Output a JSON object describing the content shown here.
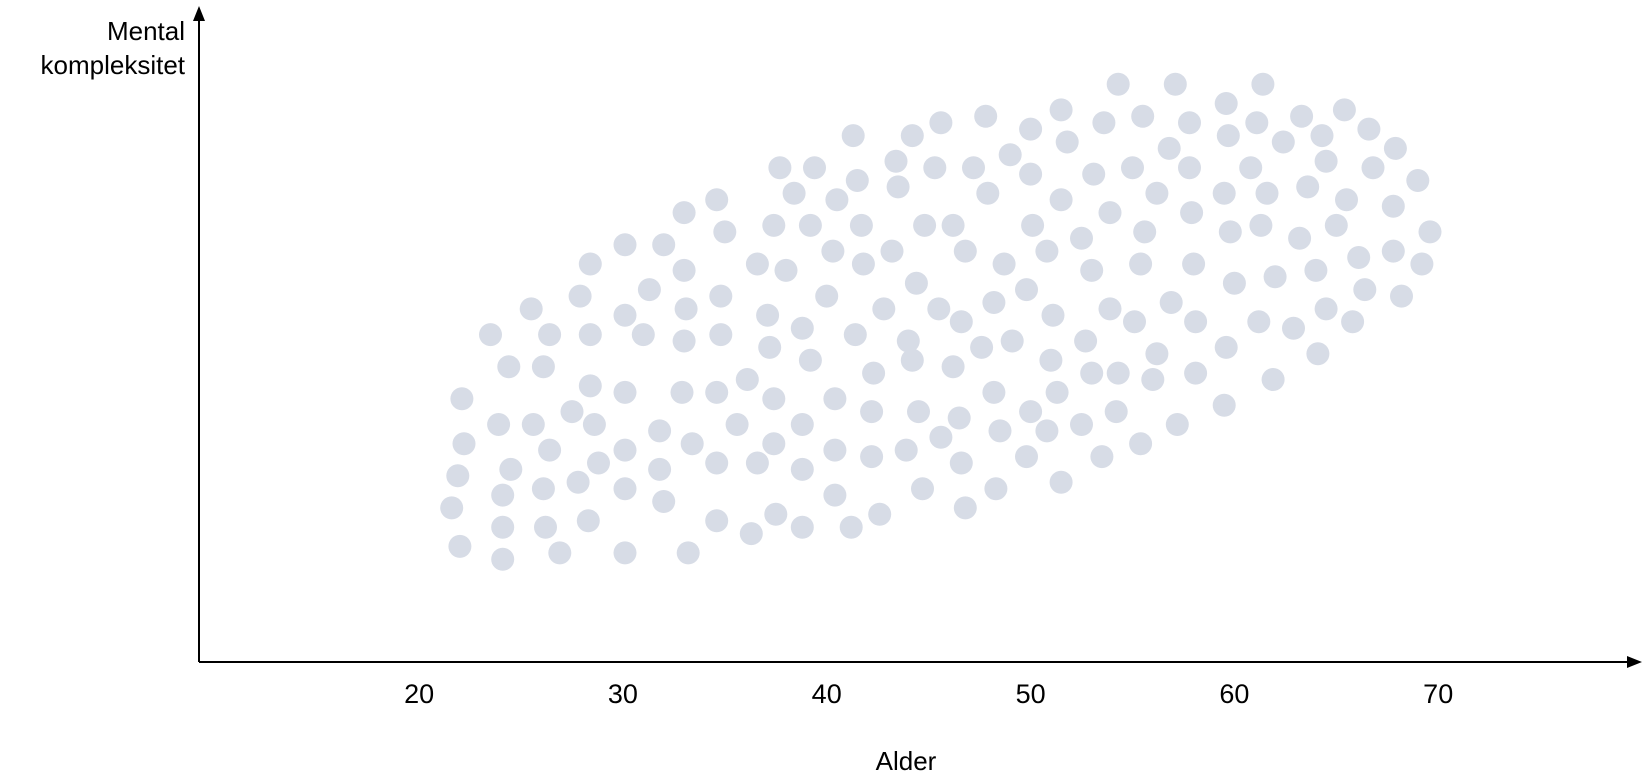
{
  "chart_data": {
    "type": "scatter",
    "title": "",
    "xlabel": "Alder",
    "ylabel": [
      "Mental",
      "kompleksitet"
    ],
    "xlim": [
      9.2,
      80
    ],
    "x_ticks": [
      20,
      30,
      40,
      50,
      60,
      70
    ],
    "ylim": [
      0,
      1
    ],
    "grid": false,
    "legend": "none",
    "point_color": "#d7dce6",
    "axis_color": "#000000",
    "points": [
      [
        21.6,
        0.24
      ],
      [
        22.0,
        0.18
      ],
      [
        21.9,
        0.29
      ],
      [
        22.2,
        0.34
      ],
      [
        22.1,
        0.41
      ],
      [
        24.1,
        0.16
      ],
      [
        24.1,
        0.21
      ],
      [
        24.1,
        0.26
      ],
      [
        24.5,
        0.3
      ],
      [
        23.9,
        0.37
      ],
      [
        24.4,
        0.46
      ],
      [
        23.5,
        0.51
      ],
      [
        25.6,
        0.37
      ],
      [
        26.1,
        0.27
      ],
      [
        26.2,
        0.21
      ],
      [
        26.4,
        0.33
      ],
      [
        26.1,
        0.46
      ],
      [
        26.4,
        0.51
      ],
      [
        25.5,
        0.55
      ],
      [
        26.9,
        0.17
      ],
      [
        27.5,
        0.39
      ],
      [
        27.8,
        0.28
      ],
      [
        27.9,
        0.57
      ],
      [
        28.3,
        0.22
      ],
      [
        28.8,
        0.31
      ],
      [
        28.6,
        0.37
      ],
      [
        28.4,
        0.43
      ],
      [
        28.4,
        0.51
      ],
      [
        28.4,
        0.62
      ],
      [
        30.1,
        0.17
      ],
      [
        30.1,
        0.27
      ],
      [
        30.1,
        0.33
      ],
      [
        30.1,
        0.42
      ],
      [
        30.1,
        0.54
      ],
      [
        30.1,
        0.65
      ],
      [
        31.0,
        0.51
      ],
      [
        31.3,
        0.58
      ],
      [
        31.8,
        0.3
      ],
      [
        31.8,
        0.36
      ],
      [
        32.0,
        0.25
      ],
      [
        32.0,
        0.65
      ],
      [
        33.2,
        0.17
      ],
      [
        32.9,
        0.42
      ],
      [
        33.0,
        0.5
      ],
      [
        33.0,
        0.61
      ],
      [
        33.1,
        0.55
      ],
      [
        33.0,
        0.7
      ],
      [
        33.4,
        0.34
      ],
      [
        34.6,
        0.22
      ],
      [
        34.6,
        0.31
      ],
      [
        34.6,
        0.42
      ],
      [
        34.8,
        0.51
      ],
      [
        34.8,
        0.57
      ],
      [
        34.6,
        0.72
      ],
      [
        35.0,
        0.67
      ],
      [
        35.6,
        0.37
      ],
      [
        36.3,
        0.2
      ],
      [
        36.1,
        0.44
      ],
      [
        36.6,
        0.31
      ],
      [
        36.6,
        0.62
      ],
      [
        37.1,
        0.54
      ],
      [
        37.2,
        0.49
      ],
      [
        37.4,
        0.34
      ],
      [
        37.4,
        0.41
      ],
      [
        37.5,
        0.23
      ],
      [
        37.4,
        0.68
      ],
      [
        37.7,
        0.77
      ],
      [
        38.0,
        0.61
      ],
      [
        38.4,
        0.73
      ],
      [
        38.8,
        0.21
      ],
      [
        38.8,
        0.3
      ],
      [
        38.8,
        0.37
      ],
      [
        38.8,
        0.52
      ],
      [
        39.2,
        0.47
      ],
      [
        39.2,
        0.68
      ],
      [
        39.4,
        0.77
      ],
      [
        40.0,
        0.57
      ],
      [
        40.3,
        0.64
      ],
      [
        40.4,
        0.26
      ],
      [
        40.4,
        0.33
      ],
      [
        40.4,
        0.41
      ],
      [
        40.5,
        0.72
      ],
      [
        41.2,
        0.21
      ],
      [
        41.4,
        0.51
      ],
      [
        41.3,
        0.82
      ],
      [
        41.5,
        0.75
      ],
      [
        41.8,
        0.62
      ],
      [
        41.7,
        0.68
      ],
      [
        42.2,
        0.32
      ],
      [
        42.3,
        0.45
      ],
      [
        42.2,
        0.39
      ],
      [
        42.6,
        0.23
      ],
      [
        42.8,
        0.55
      ],
      [
        43.2,
        0.64
      ],
      [
        43.4,
        0.78
      ],
      [
        43.5,
        0.74
      ],
      [
        43.9,
        0.33
      ],
      [
        44.0,
        0.5
      ],
      [
        44.2,
        0.47
      ],
      [
        44.2,
        0.82
      ],
      [
        44.4,
        0.59
      ],
      [
        44.5,
        0.39
      ],
      [
        44.7,
        0.27
      ],
      [
        44.8,
        0.68
      ],
      [
        45.5,
        0.55
      ],
      [
        45.3,
        0.77
      ],
      [
        45.6,
        0.84
      ],
      [
        45.6,
        0.35
      ],
      [
        46.2,
        0.46
      ],
      [
        46.2,
        0.68
      ],
      [
        46.5,
        0.38
      ],
      [
        46.6,
        0.53
      ],
      [
        46.6,
        0.31
      ],
      [
        46.8,
        0.64
      ],
      [
        46.8,
        0.24
      ],
      [
        47.2,
        0.77
      ],
      [
        47.6,
        0.49
      ],
      [
        47.8,
        0.85
      ],
      [
        47.9,
        0.73
      ],
      [
        48.2,
        0.56
      ],
      [
        48.2,
        0.42
      ],
      [
        48.3,
        0.27
      ],
      [
        48.5,
        0.36
      ],
      [
        48.7,
        0.62
      ],
      [
        49.0,
        0.79
      ],
      [
        49.1,
        0.5
      ],
      [
        49.8,
        0.32
      ],
      [
        49.8,
        0.58
      ],
      [
        50.0,
        0.83
      ],
      [
        50.0,
        0.76
      ],
      [
        50.0,
        0.39
      ],
      [
        50.1,
        0.68
      ],
      [
        50.8,
        0.36
      ],
      [
        50.8,
        0.64
      ],
      [
        51.0,
        0.47
      ],
      [
        51.1,
        0.54
      ],
      [
        51.3,
        0.42
      ],
      [
        51.5,
        0.28
      ],
      [
        51.5,
        0.72
      ],
      [
        51.5,
        0.86
      ],
      [
        51.8,
        0.81
      ],
      [
        52.5,
        0.66
      ],
      [
        52.5,
        0.37
      ],
      [
        52.7,
        0.5
      ],
      [
        53.0,
        0.45
      ],
      [
        53.0,
        0.61
      ],
      [
        53.1,
        0.76
      ],
      [
        53.5,
        0.32
      ],
      [
        53.6,
        0.84
      ],
      [
        53.9,
        0.55
      ],
      [
        53.9,
        0.7
      ],
      [
        54.2,
        0.39
      ],
      [
        54.3,
        0.45
      ],
      [
        54.3,
        0.9
      ],
      [
        55.0,
        0.77
      ],
      [
        55.1,
        0.53
      ],
      [
        55.4,
        0.62
      ],
      [
        55.4,
        0.34
      ],
      [
        55.5,
        0.85
      ],
      [
        55.6,
        0.67
      ],
      [
        56.0,
        0.44
      ],
      [
        56.2,
        0.48
      ],
      [
        56.2,
        0.73
      ],
      [
        56.8,
        0.8
      ],
      [
        56.9,
        0.56
      ],
      [
        57.2,
        0.37
      ],
      [
        57.1,
        0.9
      ],
      [
        57.8,
        0.77
      ],
      [
        57.8,
        0.84
      ],
      [
        57.9,
        0.7
      ],
      [
        58.0,
        0.62
      ],
      [
        58.1,
        0.53
      ],
      [
        58.1,
        0.45
      ],
      [
        59.5,
        0.4
      ],
      [
        59.5,
        0.73
      ],
      [
        59.6,
        0.87
      ],
      [
        59.6,
        0.49
      ],
      [
        59.7,
        0.82
      ],
      [
        59.8,
        0.67
      ],
      [
        60.0,
        0.59
      ],
      [
        60.8,
        0.77
      ],
      [
        61.1,
        0.84
      ],
      [
        61.3,
        0.68
      ],
      [
        61.4,
        0.9
      ],
      [
        61.6,
        0.73
      ],
      [
        61.2,
        0.53
      ],
      [
        61.9,
        0.44
      ],
      [
        62.0,
        0.6
      ],
      [
        62.4,
        0.81
      ],
      [
        62.9,
        0.52
      ],
      [
        63.2,
        0.66
      ],
      [
        63.3,
        0.85
      ],
      [
        63.6,
        0.74
      ],
      [
        64.1,
        0.48
      ],
      [
        64.0,
        0.61
      ],
      [
        64.3,
        0.82
      ],
      [
        64.5,
        0.78
      ],
      [
        64.5,
        0.55
      ],
      [
        65.0,
        0.68
      ],
      [
        65.4,
        0.86
      ],
      [
        65.5,
        0.72
      ],
      [
        65.8,
        0.53
      ],
      [
        66.1,
        0.63
      ],
      [
        66.4,
        0.58
      ],
      [
        66.6,
        0.83
      ],
      [
        66.8,
        0.77
      ],
      [
        67.8,
        0.64
      ],
      [
        67.8,
        0.71
      ],
      [
        67.9,
        0.8
      ],
      [
        68.2,
        0.57
      ],
      [
        69.0,
        0.75
      ],
      [
        69.2,
        0.62
      ],
      [
        69.6,
        0.67
      ]
    ]
  }
}
